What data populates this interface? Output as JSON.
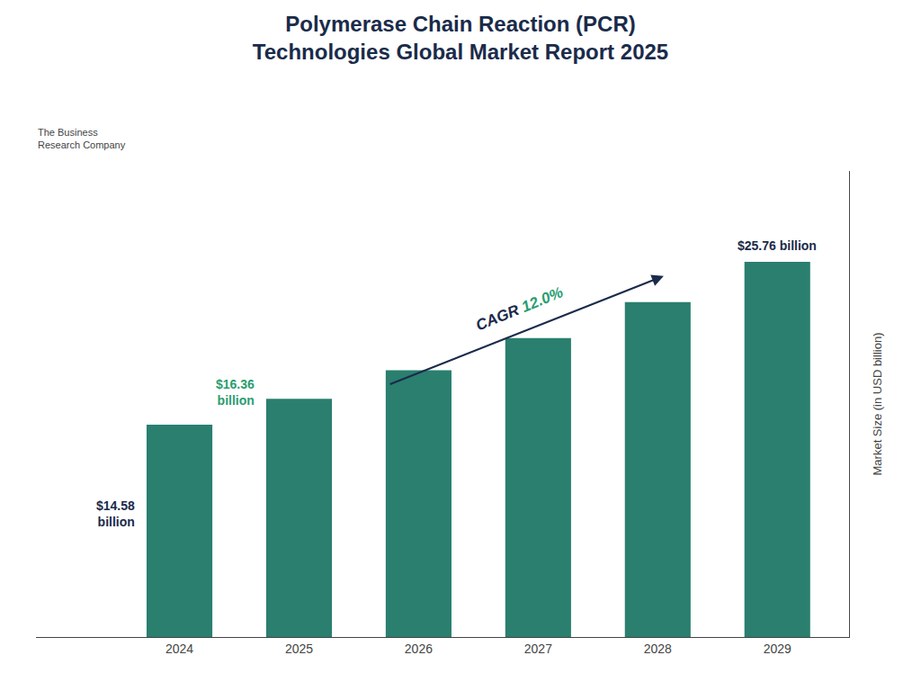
{
  "chart_data": {
    "type": "bar",
    "title": "Polymerase Chain Reaction (PCR)\nTechnologies Global Market Report 2025",
    "categories": [
      "2024",
      "2025",
      "2026",
      "2027",
      "2028",
      "2029"
    ],
    "values": [
      14.58,
      16.36,
      18.32,
      20.52,
      22.99,
      25.76
    ],
    "color": "#2a7f6f",
    "ylabel": "Market Size (in USD billion)",
    "ylim": [
      0,
      32
    ],
    "tick_labels": "x",
    "grid": false,
    "annotations": [
      {
        "text": "$14.58\nbillion",
        "category": "2024",
        "color": "#1a2b4a"
      },
      {
        "text": "$16.36\nbillion",
        "category": "2025",
        "color": "#2a9d70"
      },
      {
        "text": "$25.76 billion",
        "category": "2029",
        "color": "#1a2b4a"
      },
      {
        "text": "CAGR ",
        "color": "#1a2b4a"
      },
      {
        "text": "12.0%",
        "color": "#2a9d70"
      },
      {
        "text": "The Business\nResearch Company"
      }
    ]
  }
}
